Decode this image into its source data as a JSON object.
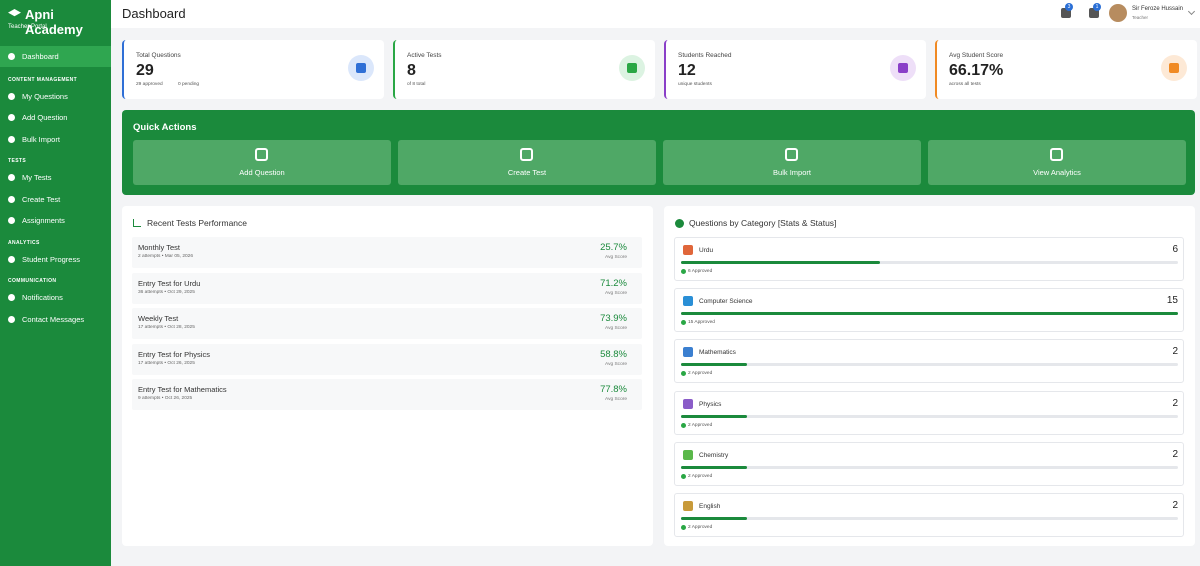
{
  "brand": {
    "title": "Apni Academy",
    "subtitle": "Teacher Portal"
  },
  "sidebar": {
    "top": "Dashboard",
    "sections": [
      {
        "heading": "CONTENT MANAGEMENT",
        "items": [
          "My Questions",
          "Add Question",
          "Bulk Import"
        ]
      },
      {
        "heading": "TESTS",
        "items": [
          "My Tests",
          "Create Test",
          "Assignments"
        ]
      },
      {
        "heading": "ANALYTICS",
        "items": [
          "Student Progress"
        ]
      },
      {
        "heading": "COMMUNICATION",
        "items": [
          "Notifications",
          "Contact Messages"
        ]
      }
    ]
  },
  "header": {
    "title": "Dashboard",
    "badges": [
      3,
      1
    ],
    "user": {
      "name": "Sir Feroze Hussain",
      "role": "Teacher"
    }
  },
  "stats": [
    {
      "label": "Total Questions",
      "value": 29,
      "notes": [
        "29 approved",
        "0 pending"
      ]
    },
    {
      "label": "Active Tests",
      "value": 8,
      "notes": [
        "of 8 total"
      ]
    },
    {
      "label": "Students Reached",
      "value": 12,
      "notes": [
        "unique students"
      ]
    },
    {
      "label": "Avg Student Score",
      "value": "66.17%",
      "notes": [
        "across all tests"
      ]
    }
  ],
  "quick_actions": {
    "title": "Quick Actions",
    "items": [
      "Add Question",
      "Create Test",
      "Bulk Import",
      "View Analytics"
    ]
  },
  "recent": {
    "title": "Recent Tests Performance",
    "tests": [
      {
        "name": "Monthly Test",
        "meta": "2 attempts • Mar 05, 2026",
        "score": "25.7%",
        "score_label": "Avg Score"
      },
      {
        "name": "Entry Test for Urdu",
        "meta": "36 attempts • Oct 29, 2025",
        "score": "71.2%",
        "score_label": "Avg Score"
      },
      {
        "name": "Weekly Test",
        "meta": "17 attempts • Oct 28, 2025",
        "score": "73.9%",
        "score_label": "Avg Score"
      },
      {
        "name": "Entry Test for Physics",
        "meta": "17 attempts • Oct 26, 2025",
        "score": "58.8%",
        "score_label": "Avg Score"
      },
      {
        "name": "Entry Test for Mathematics",
        "meta": "9 attempts • Oct 26, 2025",
        "score": "77.8%",
        "score_label": "Avg Score"
      }
    ]
  },
  "categories": {
    "title": "Questions by Category [Stats & Status]",
    "items": [
      {
        "name": "Urdu",
        "count": 6,
        "approved": "6 Approved"
      },
      {
        "name": "Computer Science",
        "count": 15,
        "approved": "15 Approved"
      },
      {
        "name": "Mathematics",
        "count": 2,
        "approved": "2 Approved"
      },
      {
        "name": "Physics",
        "count": 2,
        "approved": "2 Approved"
      },
      {
        "name": "Chemistry",
        "count": 2,
        "approved": "2 Approved"
      },
      {
        "name": "English",
        "count": 2,
        "approved": "2 Approved"
      }
    ]
  }
}
